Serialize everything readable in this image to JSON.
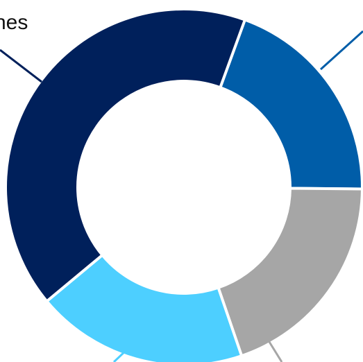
{
  "chart_data": {
    "type": "pie",
    "variant": "donut",
    "visible_labels": [
      "nes"
    ],
    "slices": [
      {
        "value": 0.196,
        "color": "#005DA8"
      },
      {
        "value": 0.196,
        "color": "#A6A6A6"
      },
      {
        "value": 0.192,
        "color": "#4DCFFF"
      },
      {
        "value": 0.416,
        "color": "#00205B"
      }
    ],
    "leader_line_colors": {
      "top_left": "#00205B",
      "top_right": "#005DA8",
      "bottom_center": "#4DCFFF",
      "bottom_right": "#A6A6A6"
    }
  }
}
